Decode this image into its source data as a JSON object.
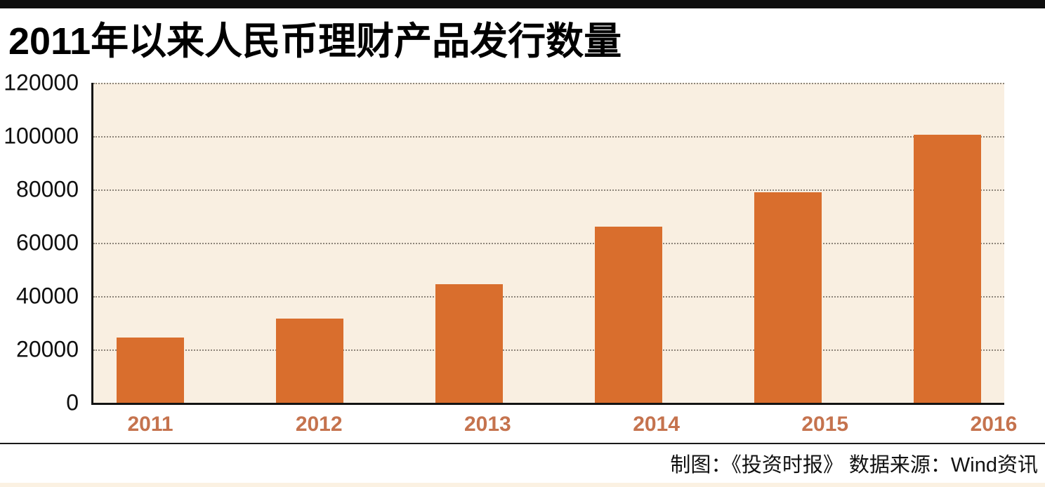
{
  "header": {
    "title": "2011年以来人民币理财产品发行数量"
  },
  "footer": {
    "credits": "制图：《投资时报》  数据来源：Wind资讯"
  },
  "colors": {
    "bar": "#d96e2d",
    "plot_background": "#f9efe1",
    "x_tick_label": "#c5734e",
    "y_tick_label": "#0f0f0f",
    "gridline": "#8d857a",
    "axis": "#141414",
    "top_bar": "#0d0d0d",
    "bottom_strip": "#fbf1e2"
  },
  "chart_data": {
    "type": "bar",
    "title": "2011年以来人民币理财产品发行数量",
    "categories": [
      "2011",
      "2012",
      "2013",
      "2014",
      "2015",
      "2016"
    ],
    "values": [
      24500,
      31500,
      44500,
      66000,
      79000,
      100500
    ],
    "xlabel": "",
    "ylabel": "",
    "ylim": [
      0,
      120000
    ],
    "ytick_step": 20000,
    "yticks": [
      0,
      20000,
      40000,
      60000,
      80000,
      100000,
      120000
    ],
    "y_tick_labels": [
      "0",
      "20000",
      "40000",
      "60000",
      "80000",
      "100000",
      "120000"
    ],
    "grid": "horizontal dotted",
    "legend": "none",
    "source_note": "制图：《投资时报》  数据来源：Wind资讯"
  }
}
